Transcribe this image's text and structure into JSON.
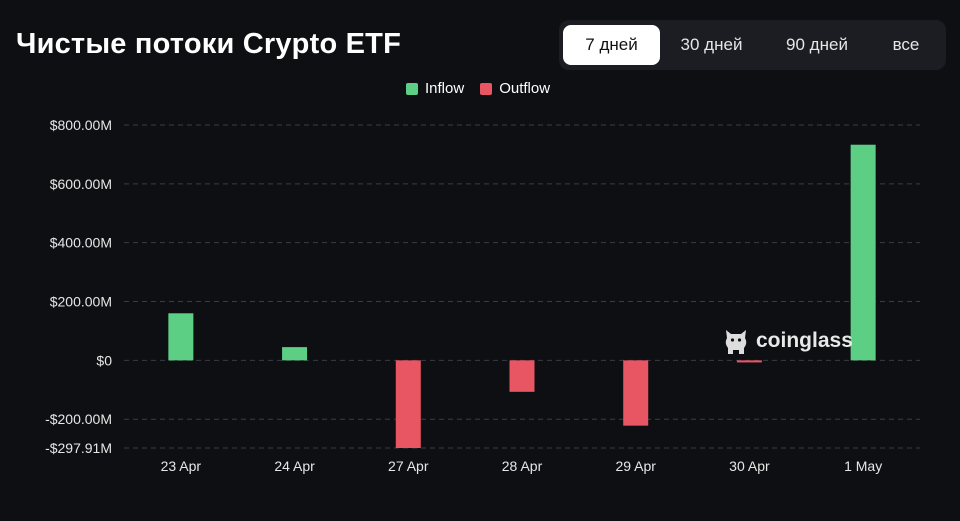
{
  "header": {
    "title": "Чистые потоки Crypto ETF"
  },
  "range_tabs": [
    {
      "label": "7 дней",
      "active": true
    },
    {
      "label": "30 дней",
      "active": false
    },
    {
      "label": "90 дней",
      "active": false
    },
    {
      "label": "все",
      "active": false
    }
  ],
  "watermark": {
    "text": "coinglass"
  },
  "colors": {
    "inflow": "#5ccf85",
    "outflow": "#e95663",
    "background": "#0e0f13"
  },
  "chart_data": {
    "type": "bar",
    "categories": [
      "23 Apr",
      "24 Apr",
      "27 Apr",
      "28 Apr",
      "29 Apr",
      "30 Apr",
      "1 May"
    ],
    "values": [
      160,
      45,
      -297.91,
      -107,
      -222,
      -7,
      733
    ],
    "unit": "$M",
    "legend": [
      "Inflow",
      "Outflow"
    ],
    "legend_position": "top-center",
    "y_ticks": [
      {
        "value": 800,
        "label": "$800.00M"
      },
      {
        "value": 600,
        "label": "$600.00M"
      },
      {
        "value": 400,
        "label": "$400.00M"
      },
      {
        "value": 200,
        "label": "$200.00M"
      },
      {
        "value": 0,
        "label": "$0"
      },
      {
        "value": -200,
        "label": "-$200.00M"
      },
      {
        "value": -297.91,
        "label": "-$297.91M"
      }
    ],
    "ylim": [
      -297.91,
      800
    ],
    "grid": true
  }
}
